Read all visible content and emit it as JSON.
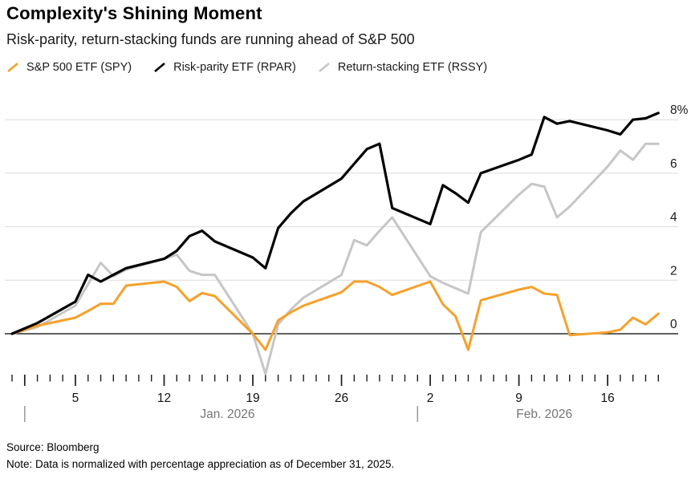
{
  "header": {
    "title": "Complexity's Shining Moment",
    "subtitle": "Risk-parity, return-stacking funds are running ahead of S&P 500"
  },
  "legend": {
    "items": [
      {
        "label": "S&P 500 ETF (SPY)",
        "color": "#F5A12B"
      },
      {
        "label": "Risk-parity ETF (RPAR)",
        "color": "#000000"
      },
      {
        "label": "Return-stacking ETF (RSSY)",
        "color": "#C6C6C6"
      }
    ]
  },
  "footer": {
    "source": "Source: Bloomberg",
    "note": "Note: Data is normalized with percentage appreciation as of December 31, 2025."
  },
  "chart_data": {
    "type": "line",
    "title": "Complexity's Shining Moment",
    "subtitle": "Risk-parity, return-stacking funds are running ahead of S&P 500",
    "unit": "%",
    "normalized_as_of": "December 31, 2025",
    "y_axis": {
      "ticks": [
        {
          "value": 0,
          "label": "0"
        },
        {
          "value": 2,
          "label": "2"
        },
        {
          "value": 4,
          "label": "4"
        },
        {
          "value": 6,
          "label": "6"
        },
        {
          "value": 8,
          "label": "8%"
        }
      ],
      "zero_line": true,
      "range": [
        -1.8,
        8.6
      ],
      "grid": true,
      "label_side": "right"
    },
    "x_axis": {
      "start_date": "Dec. 31, 2025",
      "end_date": "Feb. 20, 2026",
      "total_days": 51,
      "major_tick_days": [
        1,
        5,
        12,
        19,
        26,
        33,
        40,
        47
      ],
      "day_ticks": [
        {
          "day": 5,
          "label": "5"
        },
        {
          "day": 12,
          "label": "12"
        },
        {
          "day": 19,
          "label": "19"
        },
        {
          "day": 26,
          "label": "26"
        },
        {
          "day": 33,
          "label": "2"
        },
        {
          "day": 40,
          "label": "9"
        },
        {
          "day": 47,
          "label": "16"
        }
      ],
      "months": [
        {
          "label": "Jan. 2026",
          "separator_day": 1,
          "center_day": 17
        },
        {
          "label": "Feb. 2026",
          "separator_day": 32,
          "center_day": 42
        }
      ]
    },
    "series": [
      {
        "name": "S&P 500 ETF (SPY)",
        "color": "#F5A12B",
        "points": [
          [
            0,
            0
          ],
          [
            2,
            0.3
          ],
          [
            5,
            0.6
          ],
          [
            6,
            0.85
          ],
          [
            7,
            1.12
          ],
          [
            8,
            1.12
          ],
          [
            9,
            1.8
          ],
          [
            12,
            1.95
          ],
          [
            13,
            1.75
          ],
          [
            14,
            1.22
          ],
          [
            15,
            1.52
          ],
          [
            16,
            1.41
          ],
          [
            19,
            0.0
          ],
          [
            20,
            -0.6
          ],
          [
            21,
            0.5
          ],
          [
            22,
            0.8
          ],
          [
            23,
            1.05
          ],
          [
            26,
            1.55
          ],
          [
            27,
            1.95
          ],
          [
            28,
            1.95
          ],
          [
            29,
            1.75
          ],
          [
            30,
            1.45
          ],
          [
            33,
            1.95
          ],
          [
            34,
            1.1
          ],
          [
            35,
            0.65
          ],
          [
            36,
            -0.6
          ],
          [
            37,
            1.25
          ],
          [
            40,
            1.65
          ],
          [
            41,
            1.75
          ],
          [
            42,
            1.5
          ],
          [
            43,
            1.45
          ],
          [
            44,
            -0.05
          ],
          [
            47,
            0.05
          ],
          [
            48,
            0.15
          ],
          [
            49,
            0.6
          ],
          [
            50,
            0.35
          ],
          [
            51,
            0.75
          ]
        ]
      },
      {
        "name": "Risk-parity ETF (RPAR)",
        "color": "#000000",
        "points": [
          [
            0,
            0
          ],
          [
            2,
            0.4
          ],
          [
            5,
            1.2
          ],
          [
            6,
            2.2
          ],
          [
            7,
            1.95
          ],
          [
            8,
            2.2
          ],
          [
            9,
            2.45
          ],
          [
            12,
            2.8
          ],
          [
            13,
            3.1
          ],
          [
            14,
            3.65
          ],
          [
            15,
            3.85
          ],
          [
            16,
            3.45
          ],
          [
            19,
            2.85
          ],
          [
            20,
            2.45
          ],
          [
            21,
            3.95
          ],
          [
            22,
            4.5
          ],
          [
            23,
            4.95
          ],
          [
            26,
            5.8
          ],
          [
            27,
            6.35
          ],
          [
            28,
            6.9
          ],
          [
            29,
            7.1
          ],
          [
            30,
            4.7
          ],
          [
            33,
            4.1
          ],
          [
            34,
            5.55
          ],
          [
            35,
            5.25
          ],
          [
            36,
            4.9
          ],
          [
            37,
            6.0
          ],
          [
            40,
            6.5
          ],
          [
            41,
            6.7
          ],
          [
            42,
            8.1
          ],
          [
            43,
            7.85
          ],
          [
            44,
            7.95
          ],
          [
            47,
            7.6
          ],
          [
            48,
            7.45
          ],
          [
            49,
            8.0
          ],
          [
            50,
            8.05
          ],
          [
            51,
            8.25
          ]
        ]
      },
      {
        "name": "Return-stacking ETF (RSSY)",
        "color": "#C6C6C6",
        "points": [
          [
            0,
            0
          ],
          [
            2,
            0.25
          ],
          [
            5,
            1.05
          ],
          [
            6,
            1.85
          ],
          [
            7,
            2.65
          ],
          [
            8,
            2.15
          ],
          [
            9,
            2.4
          ],
          [
            12,
            2.8
          ],
          [
            13,
            2.95
          ],
          [
            14,
            2.35
          ],
          [
            15,
            2.2
          ],
          [
            16,
            2.2
          ],
          [
            19,
            0.0
          ],
          [
            20,
            -1.5
          ],
          [
            21,
            0.35
          ],
          [
            22,
            0.9
          ],
          [
            23,
            1.35
          ],
          [
            26,
            2.2
          ],
          [
            27,
            3.5
          ],
          [
            28,
            3.3
          ],
          [
            29,
            3.85
          ],
          [
            30,
            4.35
          ],
          [
            33,
            2.15
          ],
          [
            34,
            1.9
          ],
          [
            35,
            1.7
          ],
          [
            36,
            1.5
          ],
          [
            37,
            3.8
          ],
          [
            40,
            5.2
          ],
          [
            41,
            5.6
          ],
          [
            42,
            5.5
          ],
          [
            43,
            4.35
          ],
          [
            44,
            4.75
          ],
          [
            47,
            6.25
          ],
          [
            48,
            6.85
          ],
          [
            49,
            6.5
          ],
          [
            50,
            7.1
          ],
          [
            51,
            7.1
          ]
        ]
      }
    ]
  }
}
